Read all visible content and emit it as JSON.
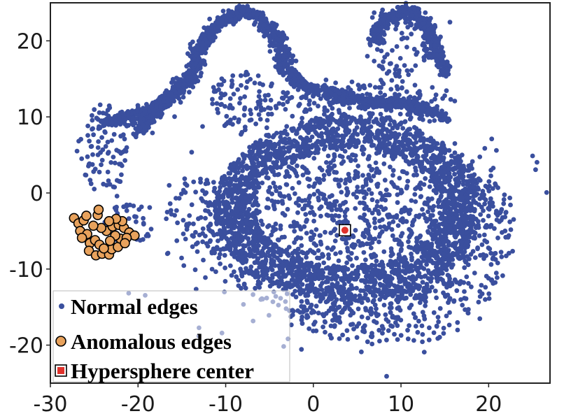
{
  "chart_data": {
    "type": "scatter",
    "xlim": [
      -30,
      27
    ],
    "ylim": [
      -25,
      25
    ],
    "x_ticks": [
      {
        "value": -30,
        "label": "-30"
      },
      {
        "value": -20,
        "label": "-20"
      },
      {
        "value": -10,
        "label": "-10"
      },
      {
        "value": 0,
        "label": "0"
      },
      {
        "value": 10,
        "label": "10"
      },
      {
        "value": 20,
        "label": "20"
      }
    ],
    "y_ticks": [
      {
        "value": 20,
        "label": "20"
      },
      {
        "value": 10,
        "label": "10"
      },
      {
        "value": 0,
        "label": "0"
      },
      {
        "value": -10,
        "label": "-10"
      },
      {
        "value": -20,
        "label": "-20"
      }
    ],
    "grid": false,
    "legend_position": "bottom-left",
    "legend": [
      {
        "label": "Normal edges",
        "marker": "dot",
        "color": "#3a4f9e"
      },
      {
        "label": "Anomalous edges",
        "marker": "circle",
        "color": "#e8a25c",
        "edge": "#000000"
      },
      {
        "label": "Hypersphere center",
        "marker": "square",
        "color": "#e0322c",
        "edge": "#000000"
      }
    ],
    "series": [
      {
        "name": "Normal edges",
        "color": "#3a4f9e",
        "distribution": "dense cloud of about 6000 points",
        "regions": [
          {
            "kind": "ring",
            "cx": 4,
            "cy": -2,
            "rx": 13,
            "ry": 10,
            "thickness": 4.5
          },
          {
            "kind": "blob",
            "cx": 3,
            "cy": -4,
            "rx": 15,
            "ry": 13
          },
          {
            "kind": "blob",
            "cx": -12,
            "cy": -3,
            "rx": 5,
            "ry": 5
          },
          {
            "kind": "blob",
            "cx": 8,
            "cy": -16,
            "rx": 10,
            "ry": 4
          },
          {
            "kind": "blob",
            "cx": 18,
            "cy": -5,
            "rx": 5,
            "ry": 10
          },
          {
            "kind": "blob",
            "cx": 5,
            "cy": 12,
            "rx": 12,
            "ry": 3
          },
          {
            "kind": "blob",
            "cx": -8,
            "cy": 12,
            "rx": 4,
            "ry": 4
          },
          {
            "kind": "blob",
            "cx": 10,
            "cy": 19,
            "rx": 4,
            "ry": 4
          },
          {
            "kind": "blob",
            "cx": -21,
            "cy": -4,
            "rx": 3,
            "ry": 2.5
          },
          {
            "kind": "blob",
            "cx": -24,
            "cy": 6,
            "rx": 3,
            "ry": 6
          },
          {
            "kind": "path",
            "points": [
              [
                -20,
                8
              ],
              [
                -17,
                12
              ],
              [
                -14,
                15
              ],
              [
                -13,
                19
              ],
              [
                -11,
                22
              ],
              [
                -8,
                24
              ],
              [
                -6,
                23
              ],
              [
                -4,
                20
              ],
              [
                -3,
                17
              ]
            ],
            "spread": 0.9
          },
          {
            "kind": "path",
            "points": [
              [
                -24,
                9
              ],
              [
                -21,
                10
              ],
              [
                -18,
                11
              ],
              [
                -15,
                14
              ]
            ],
            "spread": 0.8
          },
          {
            "kind": "path",
            "points": [
              [
                7,
                20
              ],
              [
                8,
                23
              ],
              [
                11,
                24
              ],
              [
                13,
                22
              ],
              [
                14,
                19
              ],
              [
                15,
                16
              ]
            ],
            "spread": 0.9
          },
          {
            "kind": "path",
            "points": [
              [
                -4,
                17
              ],
              [
                -1,
                14
              ],
              [
                2,
                13
              ],
              [
                6,
                12
              ],
              [
                10,
                12
              ],
              [
                15,
                10
              ]
            ],
            "spread": 0.8
          }
        ]
      },
      {
        "name": "Anomalous edges",
        "color": "#e8a25c",
        "edge": "#000000",
        "points": [
          [
            -27.3,
            -3.3
          ],
          [
            -26.8,
            -4.0
          ],
          [
            -26.2,
            -3.6
          ],
          [
            -25.9,
            -3.0
          ],
          [
            -26.6,
            -5.0
          ],
          [
            -25.8,
            -5.4
          ],
          [
            -26.4,
            -5.9
          ],
          [
            -25.5,
            -6.6
          ],
          [
            -24.9,
            -6.2
          ],
          [
            -24.4,
            -6.8
          ],
          [
            -25.6,
            -7.6
          ],
          [
            -24.8,
            -8.2
          ],
          [
            -24.1,
            -8.0
          ],
          [
            -23.3,
            -8.1
          ],
          [
            -23.0,
            -7.4
          ],
          [
            -22.3,
            -7.1
          ],
          [
            -22.0,
            -6.0
          ],
          [
            -22.6,
            -5.6
          ],
          [
            -23.2,
            -6.3
          ],
          [
            -23.6,
            -5.0
          ],
          [
            -24.2,
            -4.6
          ],
          [
            -22.9,
            -4.4
          ],
          [
            -22.2,
            -4.2
          ],
          [
            -21.6,
            -4.6
          ],
          [
            -21.0,
            -5.2
          ],
          [
            -20.4,
            -5.6
          ],
          [
            -21.3,
            -5.9
          ],
          [
            -21.8,
            -3.7
          ],
          [
            -24.6,
            -2.9
          ],
          [
            -24.5,
            -2.2
          ],
          [
            -22.5,
            -3.4
          ],
          [
            -23.3,
            -3.7
          ],
          [
            -25.1,
            -4.3
          ],
          [
            -23.9,
            -7.3
          ],
          [
            -21.5,
            -6.6
          ]
        ]
      },
      {
        "name": "Hypersphere center",
        "color": "#e0322c",
        "edge": "#000000",
        "points": [
          [
            3.6,
            -4.9
          ]
        ]
      }
    ]
  }
}
